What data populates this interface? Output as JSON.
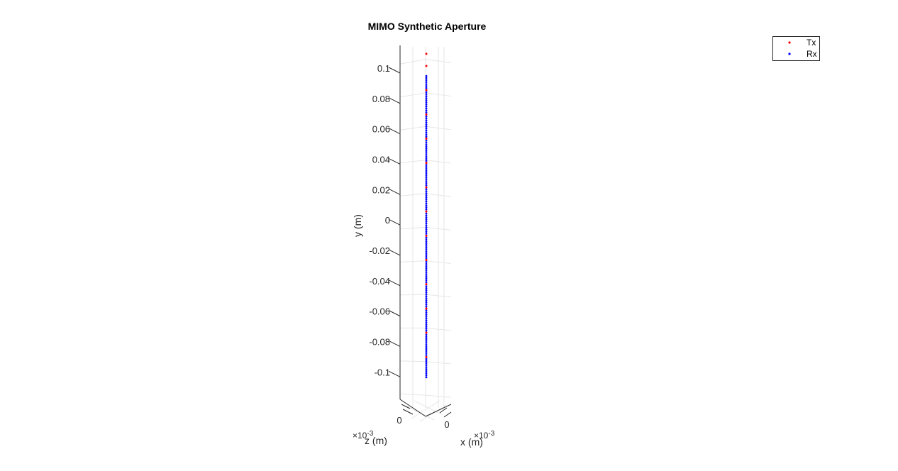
{
  "chart_data": {
    "type": "scatter",
    "title": "MIMO Synthetic Aperture",
    "xlabel": "x (m)",
    "ylabel": "y (m)",
    "zlabel": "z (m)",
    "x_exponent_label": "×10",
    "x_exponent_power": "-3",
    "z_exponent_label": "×10",
    "z_exponent_power": "-3",
    "ylim": [
      -0.105,
      0.107
    ],
    "yticks": [
      0.1,
      0.08,
      0.06,
      0.04,
      0.02,
      0,
      -0.02,
      -0.04,
      -0.06,
      -0.08,
      -0.1
    ],
    "ytick_labels": [
      "0.1",
      "0.08",
      "0.06",
      "0.04",
      "0.02",
      "0",
      "-0.02",
      "-0.04",
      "-0.06",
      "-0.08",
      "-0.1"
    ],
    "xtick_labels": [
      "0"
    ],
    "ztick_labels": [
      "0"
    ],
    "grid": true,
    "legend_position": "top-right",
    "series": [
      {
        "name": "Tx",
        "color": "#ff0000",
        "y_values": [
          0.097,
          0.0895,
          0.0745,
          0.0595,
          0.0445,
          0.0295,
          0.0145,
          -0.0005,
          -0.0155,
          -0.0305,
          -0.0455,
          -0.0605,
          -0.0755,
          -0.0905
        ]
      },
      {
        "name": "Rx",
        "color": "#0000ff",
        "y_start": -0.103,
        "y_step": 0.00125,
        "count": 150
      }
    ]
  }
}
